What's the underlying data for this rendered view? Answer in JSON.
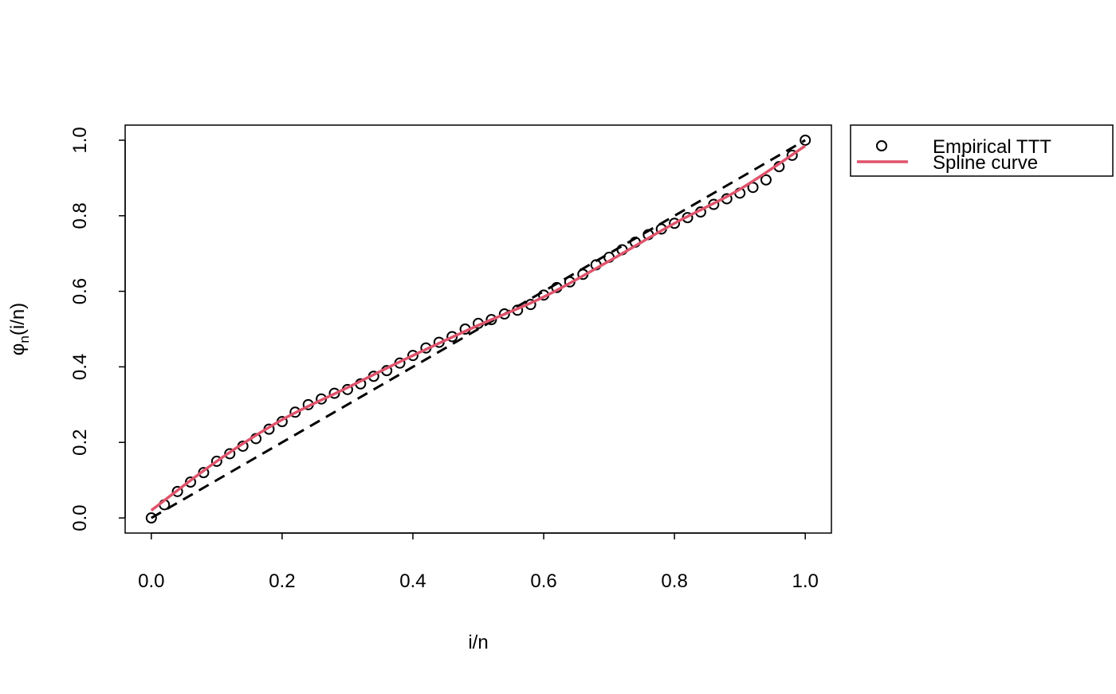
{
  "chart_data": {
    "type": "scatter",
    "xlabel": "i/n",
    "ylabel": {
      "base": "φ",
      "subscript": "n",
      "rest": "(i/n)"
    },
    "xlim": [
      -0.04,
      1.04
    ],
    "ylim": [
      -0.04,
      1.04
    ],
    "xticks": [
      {
        "value": 0,
        "label": "0.0"
      },
      0.2,
      0.4,
      0.6,
      0.8,
      {
        "value": 1,
        "label": "1.0"
      }
    ],
    "yticks": [
      {
        "value": 0,
        "label": "0.0"
      },
      0.2,
      0.4,
      0.6,
      0.8,
      {
        "value": 1,
        "label": "1.0"
      }
    ],
    "legend_position": "outside-top-right",
    "series": [
      {
        "name": "Empirical TTT",
        "color": "#000000",
        "marker": "circle",
        "x": [
          0,
          0.02,
          0.04,
          0.06,
          0.08,
          0.1,
          0.12,
          0.14,
          0.16,
          0.18,
          0.2,
          0.22,
          0.24,
          0.26,
          0.28,
          0.3,
          0.32,
          0.34,
          0.36,
          0.38,
          0.4,
          0.42,
          0.44,
          0.46,
          0.48,
          0.5,
          0.52,
          0.54,
          0.56,
          0.58,
          0.6,
          0.62,
          0.64,
          0.66,
          0.68,
          0.7,
          0.72,
          0.74,
          0.76,
          0.78,
          0.8,
          0.82,
          0.84,
          0.86,
          0.88,
          0.9,
          0.92,
          0.94,
          0.96,
          0.98,
          1
        ],
        "values": [
          0,
          0.035,
          0.07,
          0.095,
          0.12,
          0.15,
          0.17,
          0.19,
          0.21,
          0.235,
          0.255,
          0.28,
          0.3,
          0.315,
          0.33,
          0.34,
          0.355,
          0.375,
          0.39,
          0.41,
          0.43,
          0.45,
          0.465,
          0.48,
          0.5,
          0.515,
          0.525,
          0.54,
          0.55,
          0.565,
          0.59,
          0.61,
          0.625,
          0.645,
          0.67,
          0.69,
          0.71,
          0.73,
          0.75,
          0.765,
          0.78,
          0.795,
          0.81,
          0.83,
          0.845,
          0.86,
          0.875,
          0.895,
          0.93,
          0.96,
          1
        ]
      },
      {
        "name": "Spline curve",
        "color": "#DF536B",
        "marker": "line",
        "x": [
          0,
          0.1,
          0.2,
          0.3,
          0.4,
          0.5,
          0.6,
          0.7,
          0.8,
          0.9,
          1
        ],
        "values": [
          0.02,
          0.15,
          0.26,
          0.345,
          0.43,
          0.51,
          0.585,
          0.68,
          0.78,
          0.87,
          0.985
        ]
      }
    ],
    "reference_line": {
      "x": [
        0,
        1
      ],
      "values": [
        0,
        1
      ],
      "color": "#000000",
      "dashed": true
    }
  }
}
